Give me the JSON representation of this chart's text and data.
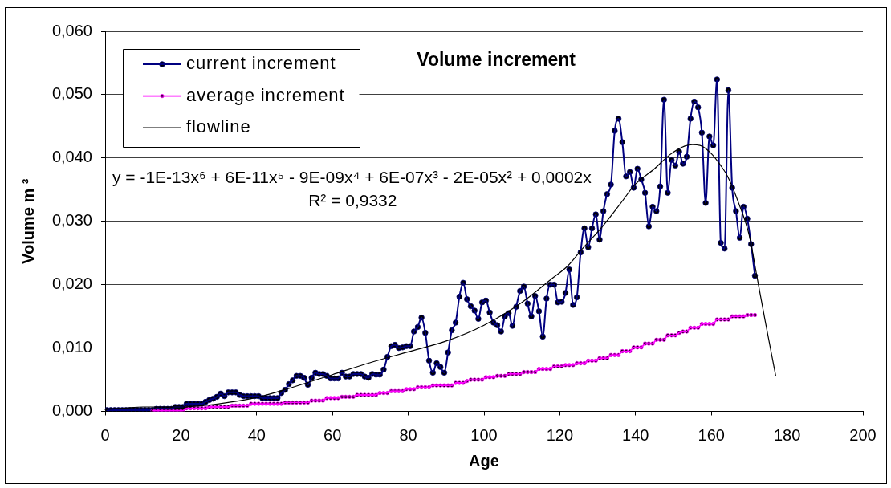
{
  "chart_data": {
    "type": "line",
    "title": "Volume increment",
    "xlabel": "Age",
    "ylabel": "Volume m ³",
    "xlim": [
      0,
      200
    ],
    "xticks": [
      0,
      20,
      40,
      60,
      80,
      100,
      120,
      140,
      160,
      180,
      200
    ],
    "ylim": [
      0,
      0.06
    ],
    "yticks": [
      {
        "value": 0,
        "label": "0,000"
      },
      {
        "value": 0.01,
        "label": "0,010"
      },
      {
        "value": 0.02,
        "label": "0,020"
      },
      {
        "value": 0.03,
        "label": "0,030"
      },
      {
        "value": 0.04,
        "label": "0,040"
      },
      {
        "value": 0.05,
        "label": "0,050"
      },
      {
        "value": 0.06,
        "label": "0,060"
      }
    ],
    "grid": "y",
    "legend": "top left",
    "annotations": [
      "y = -1E-13x⁶ + 6E-11x⁵ - 9E-09x⁴ + 6E-07x³ - 2E-05x² + 0,0002x",
      "R² = 0,9332"
    ],
    "x": [
      0.5,
      1.5,
      2.5,
      3.5,
      4.5,
      5.5,
      6.5,
      7.5,
      8.5,
      9.5,
      10.5,
      11.5,
      12.5,
      13.5,
      14.5,
      15.5,
      16.5,
      17.5,
      18.5,
      19.5,
      20.5,
      21.5,
      22.5,
      23.5,
      24.5,
      25.5,
      26.5,
      27.5,
      28.5,
      29.5,
      30.5,
      31.5,
      32.5,
      33.5,
      34.5,
      35.5,
      36.5,
      37.5,
      38.5,
      39.5,
      40.5,
      41.5,
      42.5,
      43.5,
      44.5,
      45.5,
      46.5,
      47.5,
      48.5,
      49.5,
      50.5,
      51.5,
      52.5,
      53.5,
      54.5,
      55.5,
      56.5,
      57.5,
      58.5,
      59.5,
      60.5,
      61.5,
      62.5,
      63.5,
      64.5,
      65.5,
      66.5,
      67.5,
      68.5,
      69.5,
      70.5,
      71.5,
      72.5,
      73.5,
      74.5,
      75.5,
      76.5,
      77.5,
      78.5,
      79.5,
      80.5,
      81.5,
      82.5,
      83.5,
      84.5,
      85.5,
      86.5,
      87.5,
      88.5,
      89.5,
      90.5,
      91.5,
      92.5,
      93.5,
      94.5,
      95.5,
      96.5,
      97.5,
      98.5,
      99.5,
      100.5,
      101.5,
      102.5,
      103.5,
      104.5,
      105.5,
      106.5,
      107.5,
      108.5,
      109.5,
      110.5,
      111.5,
      112.5,
      113.5,
      114.5,
      115.5,
      116.5,
      117.5,
      118.5,
      119.5,
      120.5,
      121.5,
      122.5,
      123.5,
      124.5,
      125.5,
      126.5,
      127.5,
      128.5,
      129.5,
      130.5,
      131.5,
      132.5,
      133.5,
      134.5,
      135.5,
      136.5,
      137.5,
      138.5,
      139.5,
      140.5,
      141.5,
      142.5,
      143.5,
      144.5,
      145.5,
      146.5,
      147.5,
      148.5,
      149.5,
      150.5,
      151.5,
      152.5,
      153.5,
      154.5,
      155.5,
      156.5,
      157.5,
      158.5,
      159.5,
      160.5,
      161.5,
      162.5,
      163.5,
      164.5,
      165.5,
      166.5,
      167.5,
      168.5,
      169.5,
      170.5,
      171.5
    ],
    "series": [
      {
        "name": "current increment",
        "color": "#000080",
        "marker": "circle",
        "values": [
          0.0002,
          0.0002,
          0.0002,
          0.0002,
          0.0002,
          0.0002,
          0.0002,
          0.0002,
          0.0002,
          0.0002,
          0.0002,
          0.0002,
          0.0002,
          0.0004,
          0.0004,
          0.0004,
          0.0004,
          0.0004,
          0.0007,
          0.0007,
          0.0007,
          0.0012,
          0.0012,
          0.0012,
          0.0012,
          0.0012,
          0.0015,
          0.0018,
          0.002,
          0.0023,
          0.0028,
          0.0024,
          0.003,
          0.003,
          0.003,
          0.0026,
          0.0024,
          0.0024,
          0.0024,
          0.0024,
          0.0024,
          0.0021,
          0.0021,
          0.0021,
          0.0021,
          0.0021,
          0.0029,
          0.0034,
          0.0043,
          0.0049,
          0.0056,
          0.0056,
          0.0053,
          0.0042,
          0.0053,
          0.0061,
          0.0059,
          0.0059,
          0.0056,
          0.0052,
          0.0052,
          0.0052,
          0.0061,
          0.0055,
          0.0055,
          0.0059,
          0.0059,
          0.0059,
          0.0055,
          0.0053,
          0.0059,
          0.0058,
          0.0058,
          0.0066,
          0.0086,
          0.0103,
          0.0105,
          0.01,
          0.0101,
          0.0103,
          0.0103,
          0.0126,
          0.0133,
          0.0148,
          0.0124,
          0.008,
          0.0061,
          0.0076,
          0.007,
          0.0061,
          0.0093,
          0.0128,
          0.014,
          0.0181,
          0.0203,
          0.0177,
          0.0166,
          0.0159,
          0.0146,
          0.0172,
          0.0175,
          0.0156,
          0.014,
          0.0136,
          0.0126,
          0.015,
          0.0155,
          0.0135,
          0.0165,
          0.019,
          0.0197,
          0.017,
          0.015,
          0.0182,
          0.0158,
          0.0118,
          0.0178,
          0.02,
          0.02,
          0.0172,
          0.0173,
          0.0187,
          0.0224,
          0.0168,
          0.018,
          0.0251,
          0.0289,
          0.0259,
          0.0289,
          0.0311,
          0.0271,
          0.0316,
          0.0343,
          0.0358,
          0.0443,
          0.0462,
          0.0425,
          0.0371,
          0.0378,
          0.0353,
          0.0383,
          0.0366,
          0.0345,
          0.0292,
          0.0323,
          0.0316,
          0.0355,
          0.0492,
          0.0345,
          0.0397,
          0.0388,
          0.041,
          0.0391,
          0.0402,
          0.0462,
          0.0489,
          0.048,
          0.044,
          0.0329,
          0.0434,
          0.042,
          0.0524,
          0.0266,
          0.0257,
          0.0507,
          0.0353,
          0.0316,
          0.0274,
          0.0323,
          0.0304,
          0.0264,
          0.0214
        ]
      },
      {
        "name": "average increment",
        "color": "#ff00ff",
        "marker": "circle",
        "values": [
          null,
          null,
          null,
          null,
          null,
          null,
          null,
          null,
          null,
          null,
          null,
          null,
          0.0001,
          0.0001,
          0.0001,
          0.0001,
          0.0001,
          0.0001,
          0.0001,
          0.0001,
          0.0001,
          0.0005,
          0.0005,
          0.0005,
          0.0005,
          0.0005,
          0.0005,
          0.0007,
          0.0007,
          0.0007,
          0.0007,
          0.0007,
          0.0007,
          0.0009,
          0.0009,
          0.0009,
          0.0009,
          0.0009,
          0.0012,
          0.0012,
          0.0012,
          0.0012,
          0.0012,
          0.0012,
          0.0012,
          0.0012,
          0.0012,
          0.0014,
          0.0014,
          0.0014,
          0.0014,
          0.0014,
          0.0014,
          0.0014,
          0.0017,
          0.0017,
          0.0017,
          0.0017,
          0.0021,
          0.0021,
          0.0021,
          0.0021,
          0.0023,
          0.0023,
          0.0023,
          0.0023,
          0.0026,
          0.0026,
          0.0026,
          0.0026,
          0.0026,
          0.0026,
          0.0029,
          0.0029,
          0.0029,
          0.0032,
          0.0032,
          0.0032,
          0.0032,
          0.0035,
          0.0035,
          0.0035,
          0.0038,
          0.0038,
          0.0038,
          0.0038,
          0.0041,
          0.0041,
          0.0041,
          0.0041,
          0.0041,
          0.0041,
          0.0045,
          0.0045,
          0.0045,
          0.0048,
          0.005,
          0.005,
          0.005,
          0.005,
          0.0054,
          0.0054,
          0.0054,
          0.0056,
          0.0056,
          0.0056,
          0.0059,
          0.0059,
          0.0059,
          0.0059,
          0.0062,
          0.0062,
          0.0062,
          0.0062,
          0.0067,
          0.0067,
          0.0067,
          0.0067,
          0.0071,
          0.0071,
          0.0071,
          0.0073,
          0.0073,
          0.0073,
          0.0076,
          0.0076,
          0.0076,
          0.008,
          0.008,
          0.008,
          0.0084,
          0.0084,
          0.0084,
          0.0089,
          0.0089,
          0.0089,
          0.0095,
          0.0095,
          0.0095,
          0.0101,
          0.0101,
          0.0101,
          0.0107,
          0.0107,
          0.0107,
          0.0113,
          0.0113,
          0.0113,
          0.012,
          0.012,
          0.012,
          0.0124,
          0.0126,
          0.0126,
          0.0132,
          0.0132,
          0.0132,
          0.0138,
          0.0138,
          0.0138,
          0.0138,
          0.0145,
          0.0145,
          0.0145,
          0.0145,
          0.015,
          0.015,
          0.015,
          0.015,
          0.0152,
          0.0152,
          0.0152
        ]
      },
      {
        "name": "flowline",
        "color": "#000000",
        "marker": "none",
        "x": [
          0,
          5,
          10,
          20,
          30,
          40,
          50,
          60,
          70,
          80,
          90,
          100,
          110,
          118,
          122,
          126,
          131,
          136,
          140,
          145,
          149,
          153,
          155,
          157,
          160,
          162.5,
          164.3,
          167.2,
          170,
          172,
          174.2,
          177
        ],
        "values": [
          0.0003,
          0.0005,
          0.0007,
          0.0007,
          0.0012,
          0.0022,
          0.0039,
          0.0058,
          0.0077,
          0.0094,
          0.0111,
          0.0136,
          0.0172,
          0.021,
          0.0229,
          0.0257,
          0.029,
          0.0328,
          0.0359,
          0.0383,
          0.0405,
          0.0419,
          0.0421,
          0.042,
          0.0407,
          0.0388,
          0.0371,
          0.0329,
          0.0278,
          0.0214,
          0.0143,
          0.0056
        ]
      }
    ]
  }
}
